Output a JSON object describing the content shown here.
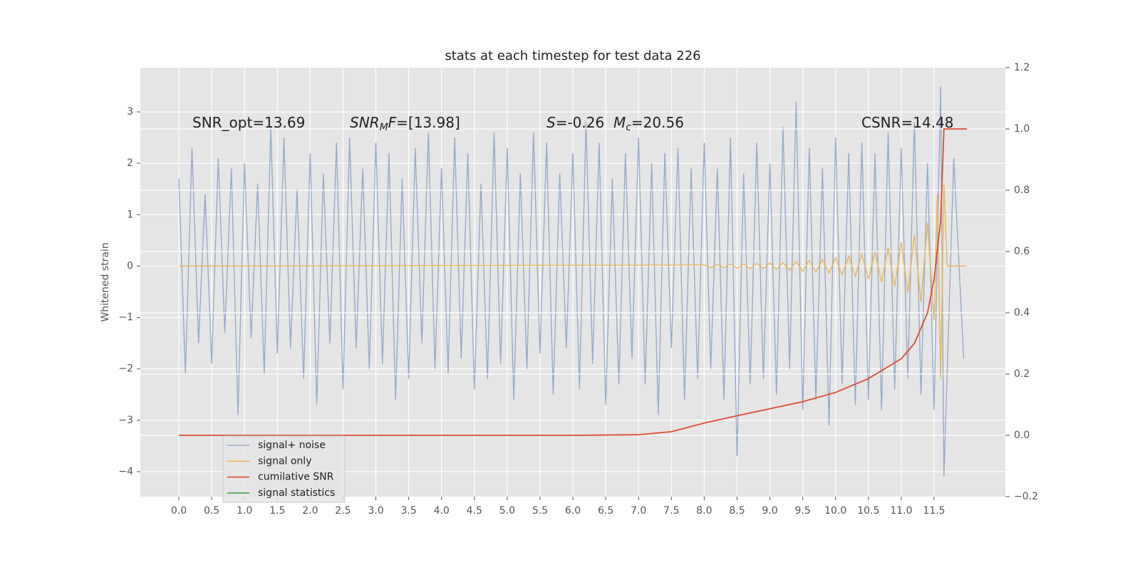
{
  "chart_data": {
    "type": "line",
    "title": "stats at each timestep for test data 226",
    "ylabel": "Whitened strain",
    "xlim": [
      -0.586,
      12.585
    ],
    "ylim": [
      -4.485,
      3.86
    ],
    "y2lim": [
      -0.2,
      1.2
    ],
    "xticks": [
      {
        "value": 0,
        "label": "0.0"
      },
      0.5,
      {
        "value": 1,
        "label": "1.0"
      },
      1.5,
      {
        "value": 2,
        "label": "2.0"
      },
      2.5,
      {
        "value": 3,
        "label": "3.0"
      },
      3.5,
      {
        "value": 4,
        "label": "4.0"
      },
      4.5,
      {
        "value": 5,
        "label": "5.0"
      },
      5.5,
      {
        "value": 6,
        "label": "6.0"
      },
      6.5,
      {
        "value": 7,
        "label": "7.0"
      },
      7.5,
      {
        "value": 8,
        "label": "8.0"
      },
      8.5,
      {
        "value": 9,
        "label": "9.0"
      },
      9.5,
      {
        "value": 10,
        "label": "10.0"
      },
      10.5,
      {
        "value": 11,
        "label": "11.0"
      },
      11.5
    ],
    "yticks": [
      {
        "value": -4,
        "label": "−4"
      },
      {
        "value": -3,
        "label": "−3"
      },
      {
        "value": -2,
        "label": "−2"
      },
      {
        "value": -1,
        "label": "−1"
      },
      0,
      1,
      2,
      3
    ],
    "y2ticks": [
      {
        "value": -0.2,
        "label": "−0.2"
      },
      {
        "value": 0,
        "label": "0.0"
      },
      0.2,
      0.4,
      0.6,
      0.8,
      {
        "value": 1,
        "label": "1.0"
      },
      1.2
    ],
    "grid": true,
    "legend": "lower left",
    "background": "#e5e5e5",
    "annotations": [
      {
        "parts": [
          {
            "text": "SNR_opt=13.69"
          }
        ]
      },
      {
        "parts": [
          {
            "text": "SNR",
            "italic": true
          },
          {
            "text": "M",
            "italic": true,
            "sub": true
          },
          {
            "text": "F",
            "italic": true
          },
          {
            "text": "=[13.98]"
          }
        ]
      },
      {
        "parts": [
          {
            "text": "S",
            "italic": true
          },
          {
            "text": "=-0.26  "
          },
          {
            "text": "M",
            "italic": true
          },
          {
            "text": "c",
            "italic": true,
            "sub": true
          },
          {
            "text": "=20.56"
          }
        ]
      },
      {
        "parts": [
          {
            "text": "CSNR=14.48"
          }
        ]
      }
    ],
    "series": [
      {
        "name": "signal+ noise",
        "color": "#97abcb",
        "x": [
          0,
          0.1,
          0.2,
          0.3,
          0.4,
          0.5,
          0.6,
          0.7,
          0.8,
          0.9,
          1,
          1.1,
          1.2,
          1.3,
          1.4,
          1.5,
          1.6,
          1.7,
          1.8,
          1.9,
          2,
          2.1,
          2.2,
          2.3,
          2.4,
          2.5,
          2.6,
          2.7,
          2.8,
          2.9,
          3,
          3.1,
          3.2,
          3.3,
          3.4,
          3.5,
          3.6,
          3.7,
          3.8,
          3.9,
          4,
          4.1,
          4.2,
          4.3,
          4.4,
          4.5,
          4.6,
          4.7,
          4.8,
          4.9,
          5,
          5.1,
          5.2,
          5.3,
          5.4,
          5.5,
          5.6,
          5.7,
          5.8,
          5.9,
          6,
          6.1,
          6.2,
          6.3,
          6.4,
          6.5,
          6.6,
          6.7,
          6.8,
          6.9,
          7,
          7.1,
          7.2,
          7.3,
          7.4,
          7.5,
          7.6,
          7.7,
          7.8,
          7.9,
          8,
          8.1,
          8.2,
          8.3,
          8.4,
          8.5,
          8.6,
          8.7,
          8.8,
          8.9,
          9,
          9.1,
          9.2,
          9.3,
          9.4,
          9.5,
          9.6,
          9.7,
          9.8,
          9.9,
          10,
          10.1,
          10.2,
          10.3,
          10.4,
          10.5,
          10.6,
          10.7,
          10.8,
          10.9,
          11,
          11.1,
          11.2,
          11.3,
          11.4,
          11.5,
          11.6,
          11.65,
          11.8,
          11.95
        ],
        "values": [
          1.7,
          -2.1,
          2.3,
          -1.5,
          1.4,
          -1.9,
          2.1,
          -1.3,
          1.9,
          -2.9,
          2.0,
          -1.4,
          1.6,
          -2.1,
          2.7,
          -1.7,
          2.5,
          -1.6,
          1.5,
          -2.2,
          2.2,
          -2.7,
          1.8,
          -1.5,
          2.4,
          -2.4,
          2.5,
          -1.6,
          1.9,
          -2.0,
          2.4,
          -1.9,
          2.2,
          -2.6,
          1.7,
          -2.2,
          2.3,
          -1.5,
          2.6,
          -2.0,
          1.9,
          -2.1,
          2.5,
          -1.8,
          2.2,
          -2.4,
          1.6,
          -2.2,
          2.6,
          -1.9,
          2.3,
          -2.6,
          1.8,
          -2.0,
          2.6,
          -1.7,
          2.4,
          -2.5,
          1.8,
          -1.6,
          2.2,
          -2.4,
          2.8,
          -1.9,
          2.4,
          -2.7,
          1.7,
          -2.3,
          2.2,
          -1.8,
          2.5,
          -2.3,
          2.0,
          -2.9,
          2.2,
          -1.6,
          2.3,
          -2.6,
          1.9,
          -2.2,
          2.4,
          -2.0,
          1.9,
          -2.6,
          2.5,
          -3.7,
          1.8,
          -2.3,
          2.4,
          -2.2,
          2.0,
          -2.5,
          2.7,
          -2.0,
          3.2,
          -2.8,
          2.3,
          -2.6,
          1.9,
          -3.1,
          2.5,
          -2.3,
          2.2,
          -2.7,
          2.4,
          -2.6,
          2.2,
          -2.8,
          2.6,
          -2.4,
          2.3,
          -2.2,
          2.8,
          -2.5,
          2.0,
          -2.8,
          3.5,
          -4.1,
          2.1,
          -1.8
        ]
      },
      {
        "name": "signal only",
        "color": "#e9b556",
        "x": [
          0,
          8,
          8.1,
          8.2,
          8.3,
          8.4,
          8.5,
          8.6,
          8.7,
          8.8,
          8.9,
          9,
          9.1,
          9.2,
          9.3,
          9.4,
          9.5,
          9.6,
          9.7,
          9.8,
          9.9,
          10,
          10.1,
          10.2,
          10.3,
          10.4,
          10.5,
          10.6,
          10.7,
          10.8,
          10.9,
          11,
          11.1,
          11.2,
          11.3,
          11.4,
          11.5,
          11.55,
          11.6,
          11.65,
          11.7,
          12
        ],
        "values": [
          0,
          0.02,
          -0.03,
          0.03,
          -0.03,
          0.04,
          -0.04,
          0.04,
          -0.05,
          0.05,
          -0.05,
          0.06,
          -0.07,
          0.07,
          -0.08,
          0.09,
          -0.1,
          0.11,
          -0.12,
          0.13,
          -0.14,
          0.16,
          -0.17,
          0.19,
          -0.2,
          0.23,
          -0.25,
          0.28,
          -0.31,
          0.35,
          -0.4,
          0.46,
          -0.52,
          0.6,
          -0.7,
          0.85,
          -1.05,
          1.4,
          -2.2,
          1.6,
          0,
          0
        ]
      },
      {
        "name": "cumilative SNR",
        "color": "#e24a33",
        "axis": "y2",
        "x": [
          0,
          6,
          7,
          7.5,
          8,
          8.5,
          9,
          9.5,
          10,
          10.5,
          11,
          11.2,
          11.4,
          11.5,
          11.6,
          11.65,
          12
        ],
        "values": [
          0,
          0,
          0.002,
          0.012,
          0.04,
          0.064,
          0.087,
          0.11,
          0.14,
          0.185,
          0.25,
          0.3,
          0.4,
          0.51,
          0.7,
          1.0,
          1.0
        ]
      },
      {
        "name": "signal statistics",
        "color": "#4f9d4f",
        "x": [],
        "values": []
      }
    ]
  }
}
